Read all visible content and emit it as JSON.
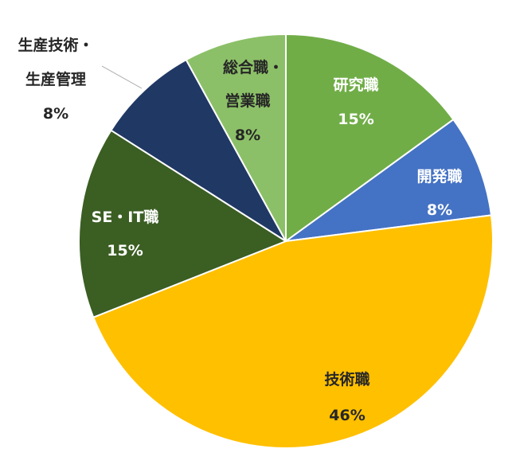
{
  "chart_data": {
    "type": "pie",
    "title": "",
    "slices": [
      {
        "name": "研究職",
        "value": 15,
        "label": "15%",
        "color": "#70AD47",
        "text_color": "#ffffff"
      },
      {
        "name": "開発職",
        "value": 8,
        "label": "8%",
        "color": "#4472C4",
        "text_color": "#ffffff"
      },
      {
        "name": "技術職",
        "value": 46,
        "label": "46%",
        "color": "#FFC000",
        "text_color": "#262626"
      },
      {
        "name": "SE・IT職",
        "value": 15,
        "label": "15%",
        "color": "#3B5E23",
        "text_color": "#ffffff"
      },
      {
        "name_lines": [
          "生産技術・",
          "生産管理"
        ],
        "value": 8,
        "label": "8%",
        "color": "#203864",
        "text_color": "#262626"
      },
      {
        "name_lines": [
          "総合職・",
          "営業職"
        ],
        "value": 8,
        "label": "8%",
        "color": "#8CC068",
        "text_color": "#262626"
      }
    ]
  }
}
